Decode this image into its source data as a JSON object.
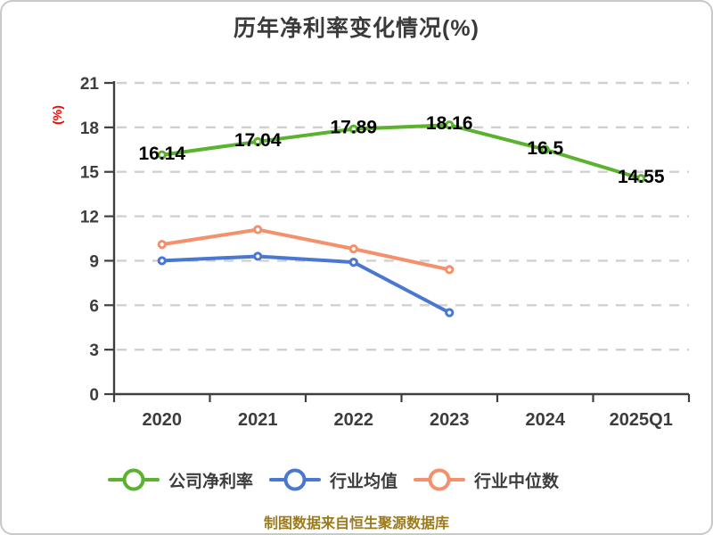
{
  "title": "历年净利率变化情况(%)",
  "y_axis_label": "(%)",
  "caption": "制图数据来自恒生聚源数据库",
  "ui_colors": {
    "background": "#ffffff",
    "card_border": "#c9c9c9",
    "title": "#3a3a3a",
    "axis": "#3f3f3f",
    "grid": "#d0d0d0",
    "tick_label": "#3d3d3d",
    "data_label": "#000000",
    "y_axis_label": "#ff0000",
    "caption": "#9c7a1e",
    "marker_fill": "#ffffff"
  },
  "chart_data": {
    "type": "line",
    "categories": [
      "2020",
      "2021",
      "2022",
      "2023",
      "2024",
      "2025Q1"
    ],
    "series": [
      {
        "name": "公司净利率",
        "color": "#5ab22e",
        "values": [
          16.14,
          17.04,
          17.89,
          18.16,
          16.5,
          14.55
        ],
        "point_labels": [
          "16.14",
          "17.04",
          "17.89",
          "18.16",
          "16.5",
          "14.55"
        ]
      },
      {
        "name": "行业均值",
        "color": "#4a78d0",
        "values": [
          9.0,
          9.3,
          8.9,
          5.5
        ]
      },
      {
        "name": "行业中位数",
        "color": "#f4906c",
        "values": [
          10.1,
          11.1,
          9.8,
          8.4
        ]
      }
    ],
    "ylim": [
      0,
      21
    ],
    "yticks": [
      0,
      3,
      6,
      9,
      12,
      15,
      18,
      21
    ],
    "grid": "dashed-horizontal",
    "legend_position": "bottom",
    "marker": "circle-white-fill"
  }
}
